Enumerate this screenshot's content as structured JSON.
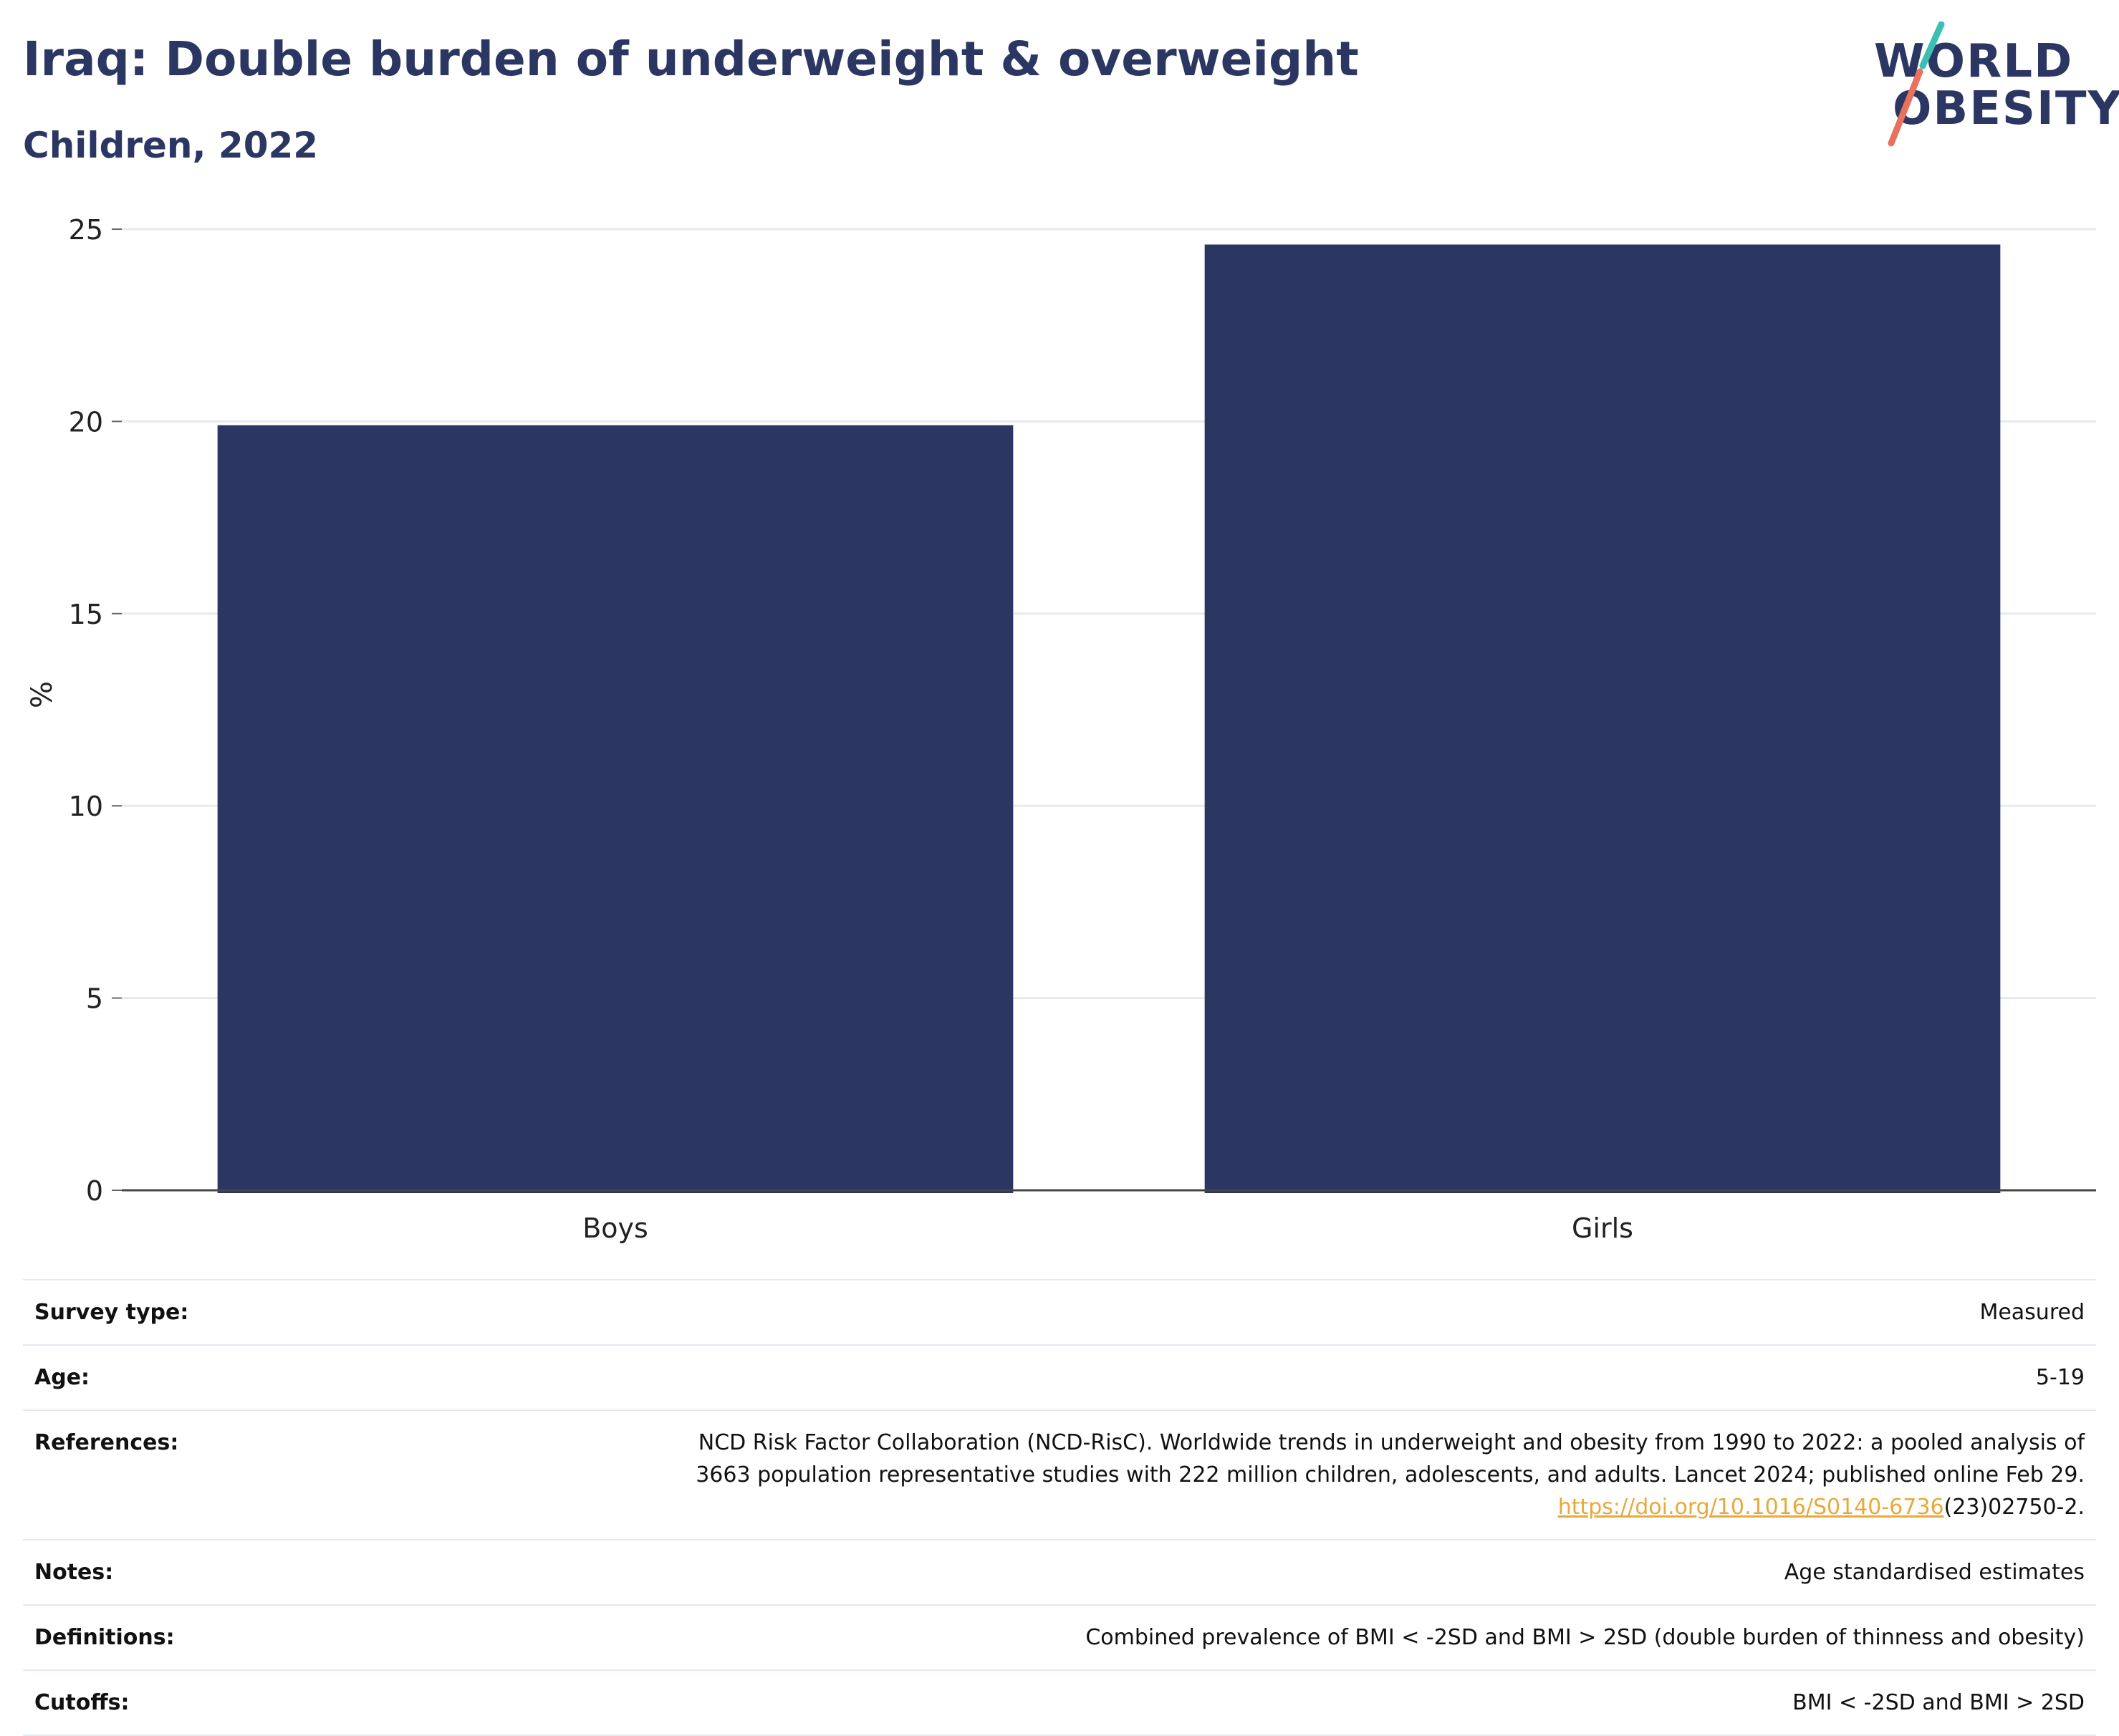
{
  "title": "Iraq: Double burden of underweight & overweight",
  "subtitle": "Children, 2022",
  "logo": {
    "line1": "WORLD",
    "line2": "OBESITY",
    "colors": {
      "text": "#2b3663",
      "slash_top": "#3bbfb2",
      "slash_bottom": "#e8725c"
    }
  },
  "colors": {
    "bar": "#2b3663",
    "title": "#2b3663",
    "grid": "#e8eaf0",
    "axis": "#444444",
    "link": "#e8a93c"
  },
  "chart_data": {
    "type": "bar",
    "categories": [
      "Boys",
      "Girls"
    ],
    "values": [
      19.9,
      24.6
    ],
    "title": "",
    "xlabel": "",
    "ylabel": "%",
    "ylim": [
      0,
      25
    ],
    "yticks": [
      0,
      5,
      10,
      15,
      20,
      25
    ],
    "grid": true,
    "legend": "none"
  },
  "info": {
    "survey_type": {
      "label": "Survey type:",
      "value": "Measured"
    },
    "age": {
      "label": "Age:",
      "value": "5-19"
    },
    "references": {
      "label": "References:",
      "line1": "NCD Risk Factor Collaboration (NCD-RisC). Worldwide trends in underweight and obesity from 1990 to 2022: a pooled analysis of",
      "line2": "3663 population representative studies with 222 million children, adolescents, and adults. Lancet 2024; published online Feb 29.",
      "link": "https://doi.org/10.1016/S0140-6736",
      "link_suffix": "(23)02750-2."
    },
    "notes": {
      "label": "Notes:",
      "value": "Age standardised estimates"
    },
    "definitions": {
      "label": "Definitions:",
      "value": "Combined prevalence of BMI < -2SD and BMI > 2SD (double burden of thinness and obesity)"
    },
    "cutoffs": {
      "label": "Cutoffs:",
      "value": "BMI < -2SD and BMI > 2SD"
    }
  }
}
